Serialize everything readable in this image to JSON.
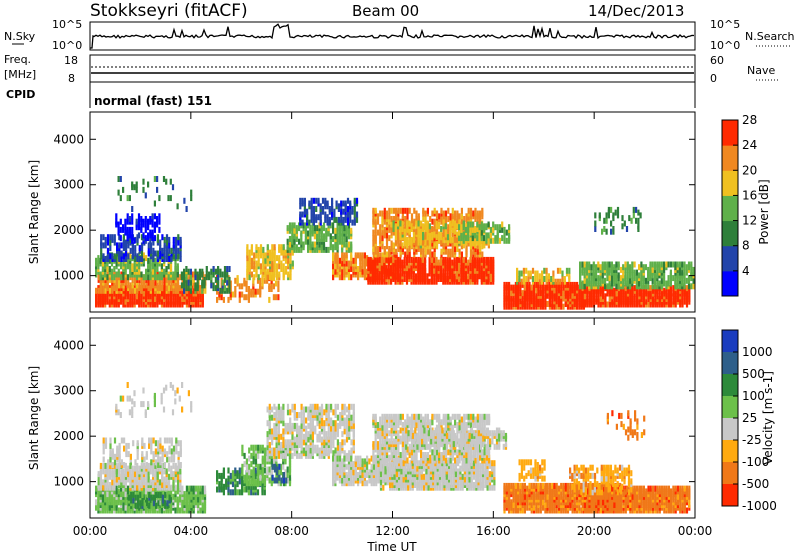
{
  "header": {
    "station": "Stokkseyri (fitACF)",
    "beam": "Beam 00",
    "date": "14/Dec/2013"
  },
  "labels": {
    "nsky": "N.Sky",
    "nsearch": "N.Search",
    "freq_line1": "Freq.",
    "freq_line2": "[MHz]",
    "nave": "Nave",
    "cpid": "CPID",
    "cpid_value": "normal (fast) 151",
    "noise_tick_top": "10^5",
    "noise_tick_bottom": "10^0",
    "freq_tick_top": "18",
    "freq_tick_bottom": "8",
    "nave_tick_top": "60",
    "nave_tick_bottom": "0"
  },
  "colors": {
    "power_scale": [
      "#0000ff",
      "#2244aa",
      "#2e7f3a",
      "#5fb04a",
      "#f0c020",
      "#f08820",
      "#ff2a00"
    ],
    "velocity_scale": [
      "#1a3cbf",
      "#2e5f8a",
      "#2d8a3a",
      "#6cc04a",
      "#c8c8c8",
      "#ffaa10",
      "#f07818",
      "#ff2a00"
    ]
  },
  "chart_data": [
    {
      "type": "heatmap",
      "name": "power",
      "ylabel": "Slant Range [km]",
      "yticks": [
        "1000",
        "2000",
        "3000",
        "4000"
      ],
      "ylim": [
        200,
        4600
      ],
      "xlim": [
        0,
        24
      ],
      "xticks": [
        "00:00",
        "04:00",
        "08:00",
        "12:00",
        "16:00",
        "20:00",
        "00:00"
      ],
      "colorbar_label": "Power [dB]",
      "colorbar_ticks": [
        "4",
        "8",
        "12",
        "16",
        "20",
        "24",
        "28"
      ]
    },
    {
      "type": "heatmap",
      "name": "velocity",
      "ylabel": "Slant Range [km]",
      "yticks": [
        "1000",
        "2000",
        "3000",
        "4000"
      ],
      "ylim": [
        200,
        4600
      ],
      "xlim": [
        0,
        24
      ],
      "xticks": [
        "00:00",
        "04:00",
        "08:00",
        "12:00",
        "16:00",
        "20:00",
        "00:00"
      ],
      "xlabel": "Time UT",
      "colorbar_label": "Velocity [m s-1]",
      "colorbar_ticks": [
        "1000",
        "500",
        "100",
        "25",
        "-25",
        "-100",
        "-500",
        "-1000"
      ]
    }
  ]
}
